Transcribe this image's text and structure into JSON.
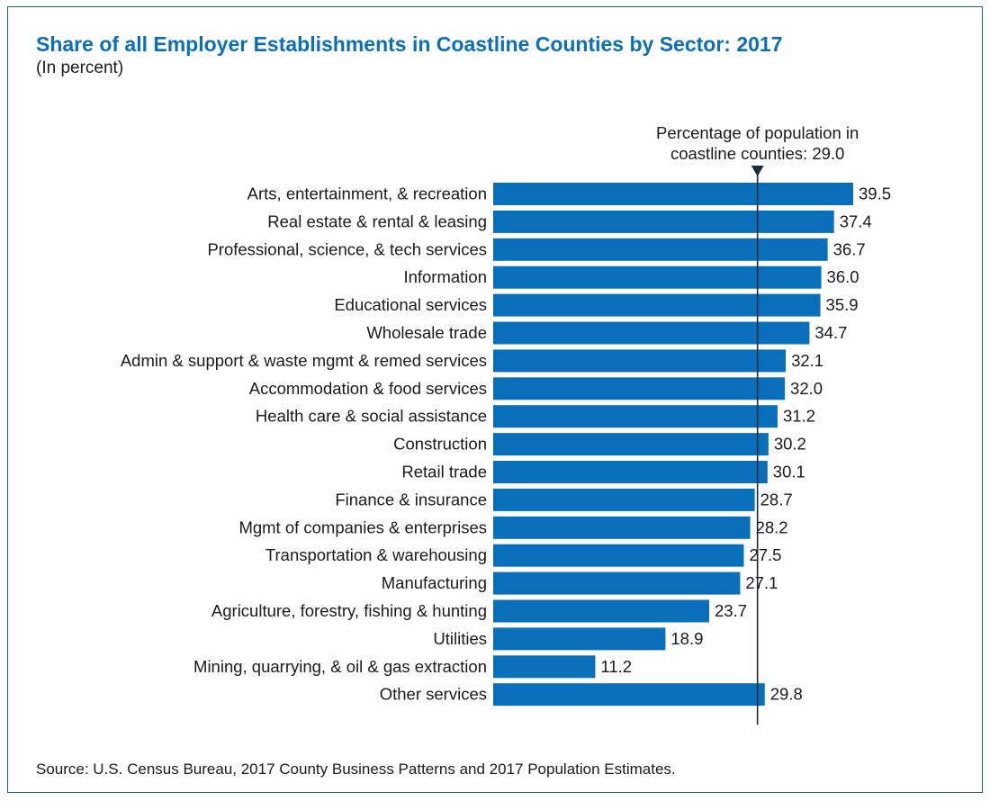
{
  "title": "Share of all Employer Establishments in Coastline Counties by Sector: 2017",
  "subtitle": "(In percent)",
  "source": "Source: U.S. Census Bureau, 2017 County Business Patterns and 2017 Population Estimates.",
  "colors": {
    "bar": "#0a6fba",
    "title": "#0a6fba",
    "reference_line": "#1c2b3a",
    "text": "#1a1a1a"
  },
  "chart_data": {
    "type": "bar",
    "orientation": "horizontal",
    "categories": [
      "Arts, entertainment, & recreation",
      "Real estate & rental & leasing",
      "Professional, science, & tech services",
      "Information",
      "Educational services",
      "Wholesale trade",
      "Admin & support & waste mgmt & remed services",
      "Accommodation & food services",
      "Health care & social assistance",
      "Construction",
      "Retail trade",
      "Finance & insurance",
      "Mgmt of companies & enterprises",
      "Transportation & warehousing",
      "Manufacturing",
      "Agriculture, forestry, fishing & hunting",
      "Utilities",
      "Mining, quarrying, & oil & gas extraction",
      "Other services"
    ],
    "values": [
      39.5,
      37.4,
      36.7,
      36.0,
      35.9,
      34.7,
      32.1,
      32.0,
      31.2,
      30.2,
      30.1,
      28.7,
      28.2,
      27.5,
      27.1,
      23.7,
      18.9,
      11.2,
      29.8
    ],
    "value_labels": [
      "39.5",
      "37.4",
      "36.7",
      "36.0",
      "35.9",
      "34.7",
      "32.1",
      "32.0",
      "31.2",
      "30.2",
      "30.1",
      "28.7",
      "28.2",
      "27.5",
      "27.1",
      "23.7",
      "18.9",
      "11.2",
      "29.8"
    ],
    "xlim": [
      0,
      39.5
    ],
    "reference_line": {
      "value": 29.0,
      "label_lines": [
        "Percentage of population in",
        "coastline counties: 29.0"
      ]
    },
    "grid": false,
    "legend": "none"
  }
}
